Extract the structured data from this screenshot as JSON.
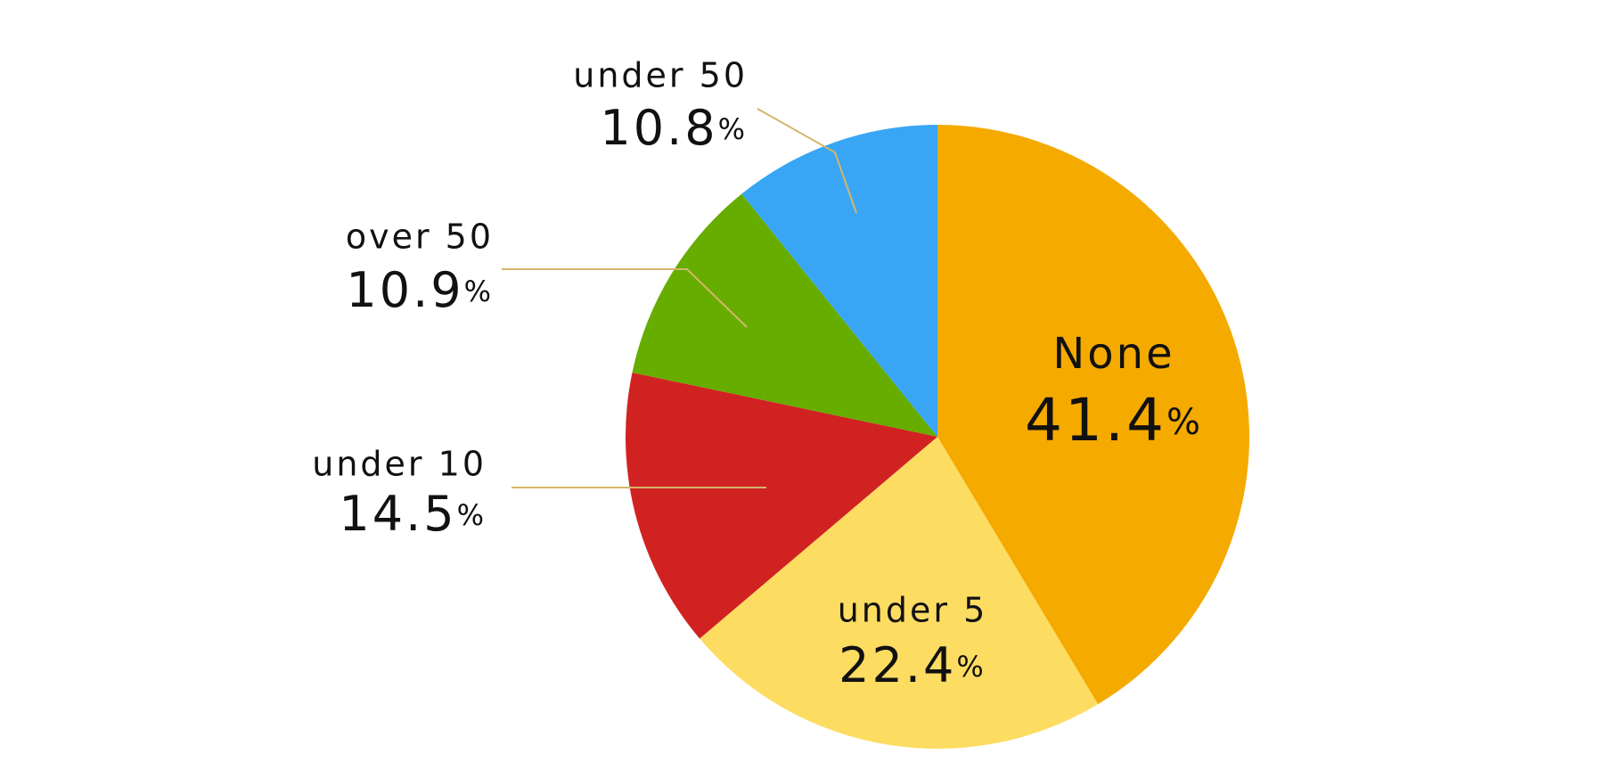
{
  "chart_data": {
    "type": "pie",
    "categories": [
      "None",
      "under 5",
      "under 10",
      "over 50",
      "under 50"
    ],
    "values": [
      41.4,
      22.4,
      14.5,
      10.9,
      10.8
    ],
    "value_labels": [
      "41.4%",
      "22.4%",
      "14.5%",
      "10.9%",
      "10.8%"
    ],
    "colors": [
      "#f5aa00",
      "#fddc62",
      "#d12222",
      "#66ad00",
      "#39a6f5"
    ]
  }
}
